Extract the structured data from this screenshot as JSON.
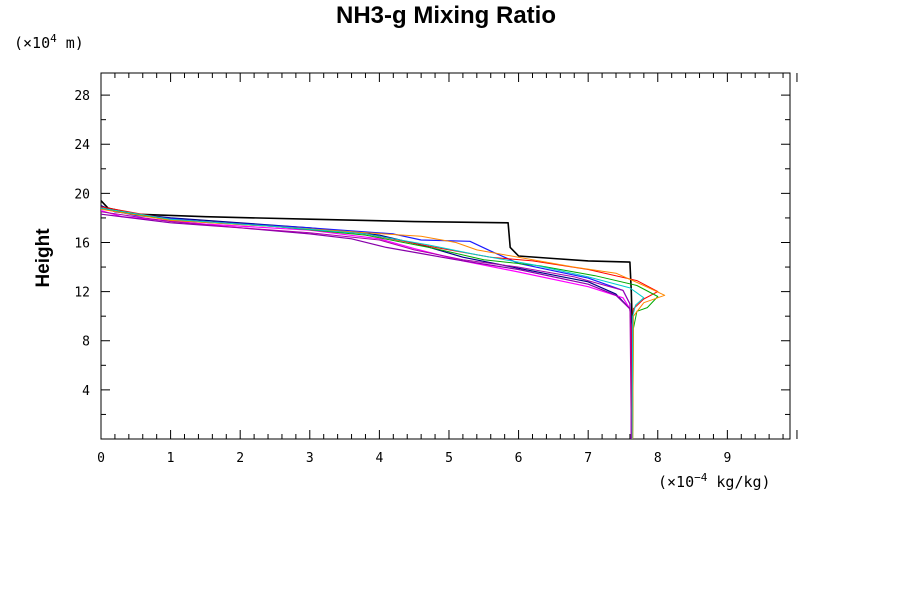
{
  "chart_data": {
    "type": "line",
    "title": "NH3-g Mixing Ratio",
    "xlabel": "",
    "ylabel": "Height",
    "x_unit": {
      "prefix": "(×10",
      "exp": "−4",
      "suffix": " kg/kg)"
    },
    "y_unit": {
      "prefix": "(×10",
      "exp": "4",
      "suffix": " m)"
    },
    "xlim": [
      0,
      9.9
    ],
    "ylim": [
      0,
      29.8
    ],
    "x_ticks": [
      0,
      1,
      2,
      3,
      4,
      5,
      6,
      7,
      8,
      9
    ],
    "y_ticks": [
      4,
      8,
      12,
      16,
      20,
      24,
      28
    ],
    "x_tick_labels": [
      "0",
      "1",
      "2",
      "3",
      "4",
      "5",
      "6",
      "7",
      "8",
      "9"
    ],
    "y_tick_labels": [
      "4",
      "8",
      "12",
      "16",
      "20",
      "24",
      "28"
    ],
    "grid": false,
    "legend": "none",
    "series": [
      {
        "color": "#000000",
        "width": 1.6,
        "points": [
          [
            0,
            19.4
          ],
          [
            0.1,
            18.8
          ],
          [
            0.5,
            18.3
          ],
          [
            1.5,
            18.1
          ],
          [
            3,
            17.9
          ],
          [
            4.5,
            17.7
          ],
          [
            5.85,
            17.6
          ],
          [
            5.88,
            15.6
          ],
          [
            6,
            14.9
          ],
          [
            6.5,
            14.7
          ],
          [
            7,
            14.5
          ],
          [
            7.6,
            14.4
          ],
          [
            7.62,
            12
          ],
          [
            7.63,
            10
          ],
          [
            7.63,
            0
          ]
        ]
      },
      {
        "color": "#000088",
        "width": 1.2,
        "points": [
          [
            0,
            19
          ],
          [
            0.2,
            18.5
          ],
          [
            1,
            18
          ],
          [
            2,
            17.6
          ],
          [
            3,
            17.2
          ],
          [
            4,
            16.6
          ],
          [
            4.6,
            15.8
          ],
          [
            5.2,
            14.8
          ],
          [
            6,
            13.9
          ],
          [
            7,
            12.8
          ],
          [
            7.4,
            11.8
          ],
          [
            7.6,
            10.6
          ],
          [
            7.62,
            9
          ],
          [
            7.62,
            0
          ]
        ]
      },
      {
        "color": "#1a1aff",
        "width": 1.2,
        "points": [
          [
            0,
            18.8
          ],
          [
            0.5,
            18.2
          ],
          [
            1.5,
            17.7
          ],
          [
            3,
            17.2
          ],
          [
            4.2,
            16.7
          ],
          [
            4.6,
            16.2
          ],
          [
            5.3,
            16.1
          ],
          [
            5.6,
            15.3
          ],
          [
            6,
            14.3
          ],
          [
            7,
            13.1
          ],
          [
            7.5,
            12.1
          ],
          [
            7.6,
            11
          ],
          [
            7.62,
            9
          ],
          [
            7.62,
            0
          ]
        ]
      },
      {
        "color": "#ff00ff",
        "width": 1.2,
        "points": [
          [
            0,
            18.6
          ],
          [
            0.3,
            18.1
          ],
          [
            1.5,
            17.5
          ],
          [
            3,
            17
          ],
          [
            4,
            16.3
          ],
          [
            4.5,
            15.5
          ],
          [
            5.2,
            14.5
          ],
          [
            6,
            13.6
          ],
          [
            7,
            12.4
          ],
          [
            7.5,
            11.5
          ],
          [
            7.6,
            10.6
          ],
          [
            7.62,
            9
          ],
          [
            7.62,
            0
          ]
        ]
      },
      {
        "color": "#8800aa",
        "width": 1.2,
        "points": [
          [
            0,
            18.3
          ],
          [
            1,
            17.6
          ],
          [
            2,
            17.2
          ],
          [
            3,
            16.7
          ],
          [
            3.6,
            16.3
          ],
          [
            4.1,
            15.6
          ],
          [
            4.6,
            15.1
          ],
          [
            5.1,
            14.6
          ],
          [
            6,
            13.8
          ],
          [
            7,
            12.6
          ],
          [
            7.4,
            11.7
          ],
          [
            7.6,
            10.6
          ],
          [
            7.62,
            9
          ],
          [
            7.62,
            0
          ]
        ]
      },
      {
        "color": "#ff0000",
        "width": 1.0,
        "points": [
          [
            0,
            18.9
          ],
          [
            1,
            17.9
          ],
          [
            2.5,
            17.3
          ],
          [
            3.8,
            16.7
          ],
          [
            4.8,
            15.6
          ],
          [
            5.6,
            14.8
          ],
          [
            6.2,
            14.5
          ],
          [
            7,
            13.8
          ],
          [
            7.7,
            12.9
          ],
          [
            8,
            12
          ],
          [
            7.8,
            11.4
          ],
          [
            7.65,
            10.6
          ],
          [
            7.63,
            9
          ],
          [
            7.63,
            0
          ]
        ]
      },
      {
        "color": "#00aa00",
        "width": 1.0,
        "points": [
          [
            0,
            18.8
          ],
          [
            1,
            17.8
          ],
          [
            2.5,
            17.3
          ],
          [
            3.8,
            16.6
          ],
          [
            4.8,
            15.5
          ],
          [
            5.5,
            14.6
          ],
          [
            6.3,
            14.1
          ],
          [
            7.1,
            13.3
          ],
          [
            7.7,
            12.5
          ],
          [
            8,
            11.6
          ],
          [
            7.85,
            10.7
          ],
          [
            7.7,
            10.4
          ],
          [
            7.65,
            9
          ],
          [
            7.64,
            0
          ]
        ]
      },
      {
        "color": "#ff8800",
        "width": 1.0,
        "points": [
          [
            0,
            18.7
          ],
          [
            1,
            17.8
          ],
          [
            2.5,
            17.3
          ],
          [
            3.8,
            16.8
          ],
          [
            4.6,
            16.5
          ],
          [
            5.1,
            16
          ],
          [
            5.4,
            15.4
          ],
          [
            6.1,
            14.7
          ],
          [
            6.8,
            14
          ],
          [
            7.4,
            13.5
          ],
          [
            7.8,
            12.5
          ],
          [
            8.1,
            11.7
          ],
          [
            7.8,
            11.1
          ],
          [
            7.65,
            10
          ],
          [
            7.64,
            0
          ]
        ]
      },
      {
        "color": "#00cccc",
        "width": 1.0,
        "points": [
          [
            0,
            18.8
          ],
          [
            1,
            17.9
          ],
          [
            2.5,
            17.3
          ],
          [
            3.8,
            16.7
          ],
          [
            4.7,
            15.8
          ],
          [
            5.4,
            15
          ],
          [
            6.2,
            14.2
          ],
          [
            7,
            13.2
          ],
          [
            7.6,
            12.3
          ],
          [
            7.8,
            11.5
          ],
          [
            7.68,
            10.9
          ],
          [
            7.64,
            10
          ],
          [
            7.63,
            0
          ]
        ]
      },
      {
        "color": "#aa00aa",
        "width": 1.0,
        "points": [
          [
            0,
            18.5
          ],
          [
            1,
            17.7
          ],
          [
            2,
            17.2
          ],
          [
            3,
            16.8
          ],
          [
            4,
            16.2
          ],
          [
            4.5,
            15.4
          ],
          [
            5.2,
            14.6
          ],
          [
            6,
            14
          ],
          [
            6.8,
            13.2
          ],
          [
            7.5,
            12.1
          ],
          [
            7.6,
            11
          ],
          [
            7.62,
            0
          ]
        ]
      }
    ]
  }
}
